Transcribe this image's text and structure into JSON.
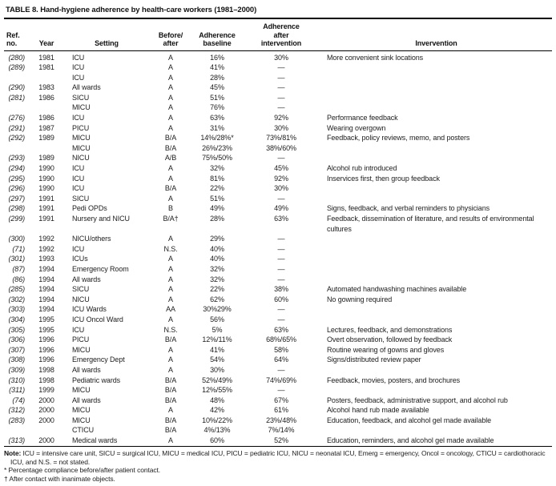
{
  "table": {
    "title": "TABLE 8. Hand-hygiene adherence by health-care workers (1981–2000)",
    "columns": [
      {
        "id": "ref",
        "label": "Ref. no."
      },
      {
        "id": "year",
        "label": "Year"
      },
      {
        "id": "setting",
        "label": "Setting"
      },
      {
        "id": "before_after",
        "label": "Before/\nafter"
      },
      {
        "id": "adherence_baseline",
        "label": "Adherence\nbaseline"
      },
      {
        "id": "adherence_after_intervention",
        "label": "Adherence\nafter\nintervention"
      },
      {
        "id": "intervention",
        "label": "Invervention"
      }
    ],
    "rows": [
      [
        "(280)",
        "1981",
        "ICU",
        "A",
        "16%",
        "30%",
        "More convenient sink locations"
      ],
      [
        "(289)",
        "1981",
        "ICU",
        "A",
        "41%",
        "—",
        ""
      ],
      [
        "",
        "",
        "ICU",
        "A",
        "28%",
        "—",
        ""
      ],
      [
        "(290)",
        "1983",
        "All wards",
        "A",
        "45%",
        "—",
        ""
      ],
      [
        "(281)",
        "1986",
        "SICU",
        "A",
        "51%",
        "—",
        ""
      ],
      [
        "",
        "",
        "MICU",
        "A",
        "76%",
        "—",
        ""
      ],
      [
        "(276)",
        "1986",
        "ICU",
        "A",
        "63%",
        "92%",
        "Performance feedback"
      ],
      [
        "(291)",
        "1987",
        "PICU",
        "A",
        "31%",
        "30%",
        "Wearing overgown"
      ],
      [
        "(292)",
        "1989",
        "MICU",
        "B/A",
        "14%/28%*",
        "73%/81%",
        "Feedback, policy reviews, memo, and posters"
      ],
      [
        "",
        "",
        "MICU",
        "B/A",
        "26%/23%",
        "38%/60%",
        ""
      ],
      [
        "(293)",
        "1989",
        "NICU",
        "A/B",
        "75%/50%",
        "—",
        ""
      ],
      [
        "(294)",
        "1990",
        "ICU",
        "A",
        "32%",
        "45%",
        "Alcohol rub introduced"
      ],
      [
        "(295)",
        "1990",
        "ICU",
        "A",
        "81%",
        "92%",
        "Inservices first, then group feedback"
      ],
      [
        "(296)",
        "1990",
        "ICU",
        "B/A",
        "22%",
        "30%",
        ""
      ],
      [
        "(297)",
        "1991",
        "SICU",
        "A",
        "51%",
        "—",
        ""
      ],
      [
        "(298)",
        "1991",
        "Pedi OPDs",
        "B",
        "49%",
        "49%",
        "Signs, feedback, and verbal reminders to physicians"
      ],
      [
        "(299)",
        "1991",
        "Nursery and NICU",
        "B/A†",
        "28%",
        "63%",
        "Feedback, dissemination of literature, and results of environmental cultures"
      ],
      [
        "(300)",
        "1992",
        "NICU/others",
        "A",
        "29%",
        "—",
        ""
      ],
      [
        "(71)",
        "1992",
        "ICU",
        "N.S.",
        "40%",
        "—",
        ""
      ],
      [
        "(301)",
        "1993",
        "ICUs",
        "A",
        "40%",
        "—",
        ""
      ],
      [
        "(87)",
        "1994",
        "Emergency Room",
        "A",
        "32%",
        "—",
        ""
      ],
      [
        "(86)",
        "1994",
        "All wards",
        "A",
        "32%",
        "—",
        ""
      ],
      [
        "(285)",
        "1994",
        "SICU",
        "A",
        "22%",
        "38%",
        "Automated handwashing machines available"
      ],
      [
        "(302)",
        "1994",
        "NICU",
        "A",
        "62%",
        "60%",
        "No gowning required"
      ],
      [
        "(303)",
        "1994",
        "ICU Wards",
        "AA",
        "30%29%",
        "—",
        ""
      ],
      [
        "(304)",
        "1995",
        "ICU Oncol Ward",
        "A",
        "56%",
        "—",
        ""
      ],
      [
        "(305)",
        "1995",
        "ICU",
        "N.S.",
        "5%",
        "63%",
        "Lectures, feedback, and demonstrations"
      ],
      [
        "(306)",
        "1996",
        "PICU",
        "B/A",
        "12%/11%",
        "68%/65%",
        "Overt observation, followed by feedback"
      ],
      [
        "(307)",
        "1996",
        "MICU",
        "A",
        "41%",
        "58%",
        "Routine wearing of gowns and gloves"
      ],
      [
        "(308)",
        "1996",
        "Emergency Dept",
        "A",
        "54%",
        "64%",
        "Signs/distributed review paper"
      ],
      [
        "(309)",
        "1998",
        "All wards",
        "A",
        "30%",
        "—",
        ""
      ],
      [
        "(310)",
        "1998",
        "Pediatric wards",
        "B/A",
        "52%/49%",
        "74%/69%",
        "Feedback, movies, posters, and brochures"
      ],
      [
        "(311)",
        "1999",
        "MICU",
        "B/A",
        "12%/55%",
        "—",
        ""
      ],
      [
        "(74)",
        "2000",
        "All wards",
        "B/A",
        "48%",
        "67%",
        "Posters, feedback, administrative support, and alcohol rub"
      ],
      [
        "(312)",
        "2000",
        "MICU",
        "A",
        "42%",
        "61%",
        "Alcohol hand rub made available"
      ],
      [
        "(283)",
        "2000",
        "MICU",
        "B/A",
        "10%/22%",
        "23%/48%",
        "Education, feedback, and alcohol gel made available"
      ],
      [
        "",
        "",
        "CTICU",
        "B/A",
        "4%/13%",
        "7%/14%",
        ""
      ],
      [
        "(313)",
        "2000",
        "Medical wards",
        "A",
        "60%",
        "52%",
        "Education, reminders, and alcohol gel made available"
      ]
    ]
  },
  "footer": {
    "note_label": "Note:",
    "note_text": " ICU = intensive care unit, SICU = surgical ICU, MICU = medical ICU, PICU = pediatric ICU, NICU = neonatal ICU, Emerg = emergency, Oncol = oncology, CTICU = cardiothoracic ICU, and N.S. = not stated.",
    "footnote_star": "* Percentage compliance before/after patient contact.",
    "footnote_dagger": "† After contact with inanimate objects."
  },
  "colors": {
    "text": "#1d1d1d",
    "rule": "#000000",
    "background": "#ffffff"
  }
}
